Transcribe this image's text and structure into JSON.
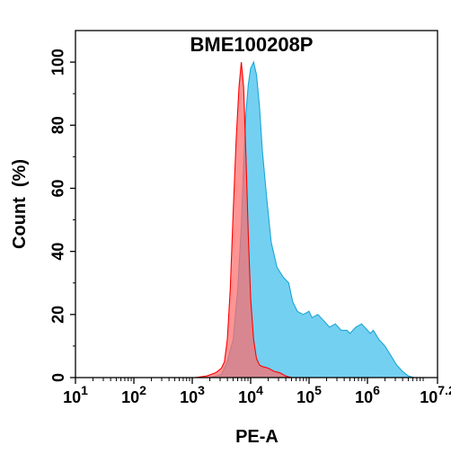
{
  "chart_data": {
    "type": "area",
    "title": "BME100208P",
    "xlabel": "PE-A",
    "ylabel": "Count  (%)",
    "x_scale": "log10",
    "xlim": [
      1,
      7.2
    ],
    "ylim": [
      0,
      110
    ],
    "x_ticks": [
      {
        "base": "10",
        "exp": "1",
        "value": 1
      },
      {
        "base": "10",
        "exp": "2",
        "value": 2
      },
      {
        "base": "10",
        "exp": "3",
        "value": 3
      },
      {
        "base": "10",
        "exp": "4",
        "value": 4
      },
      {
        "base": "10",
        "exp": "5",
        "value": 5
      },
      {
        "base": "10",
        "exp": "6",
        "value": 6
      },
      {
        "base": "10",
        "exp": "7.2",
        "value": 7.2
      }
    ],
    "y_ticks": [
      "0",
      "20",
      "40",
      "60",
      "80",
      "100"
    ],
    "grid": false,
    "legend": "none",
    "series": [
      {
        "color": "#ff0000",
        "fill": "#ff6b6b",
        "points": [
          [
            3.05,
            0
          ],
          [
            3.25,
            0.5
          ],
          [
            3.4,
            1.5
          ],
          [
            3.5,
            3
          ],
          [
            3.55,
            5
          ],
          [
            3.6,
            12
          ],
          [
            3.65,
            28
          ],
          [
            3.7,
            52
          ],
          [
            3.75,
            75
          ],
          [
            3.8,
            92
          ],
          [
            3.84,
            100
          ],
          [
            3.88,
            92
          ],
          [
            3.92,
            70
          ],
          [
            3.96,
            45
          ],
          [
            4.0,
            25
          ],
          [
            4.05,
            12
          ],
          [
            4.1,
            6
          ],
          [
            4.15,
            4
          ],
          [
            4.2,
            3.5
          ],
          [
            4.3,
            3
          ],
          [
            4.4,
            2
          ],
          [
            4.5,
            1.5
          ],
          [
            4.6,
            0.5
          ],
          [
            4.7,
            0
          ]
        ]
      },
      {
        "color": "#1ca6d8",
        "fill": "#5cc8ee",
        "points": [
          [
            3.3,
            0
          ],
          [
            3.5,
            1
          ],
          [
            3.6,
            5
          ],
          [
            3.7,
            12
          ],
          [
            3.78,
            28
          ],
          [
            3.84,
            48
          ],
          [
            3.88,
            68
          ],
          [
            3.92,
            84
          ],
          [
            3.96,
            93
          ],
          [
            4.0,
            98
          ],
          [
            4.05,
            100
          ],
          [
            4.1,
            96
          ],
          [
            4.15,
            86
          ],
          [
            4.2,
            72
          ],
          [
            4.28,
            56
          ],
          [
            4.35,
            43
          ],
          [
            4.45,
            35
          ],
          [
            4.55,
            32
          ],
          [
            4.65,
            30
          ],
          [
            4.72,
            24
          ],
          [
            4.8,
            21
          ],
          [
            4.9,
            20
          ],
          [
            5.0,
            21
          ],
          [
            5.05,
            19
          ],
          [
            5.15,
            20
          ],
          [
            5.25,
            18
          ],
          [
            5.35,
            16
          ],
          [
            5.45,
            17
          ],
          [
            5.55,
            15
          ],
          [
            5.65,
            15
          ],
          [
            5.7,
            14
          ],
          [
            5.8,
            16
          ],
          [
            5.9,
            17
          ],
          [
            6.0,
            15
          ],
          [
            6.05,
            14
          ],
          [
            6.1,
            15
          ],
          [
            6.2,
            12
          ],
          [
            6.3,
            10
          ],
          [
            6.4,
            7
          ],
          [
            6.5,
            4
          ],
          [
            6.6,
            2
          ],
          [
            6.7,
            0.5
          ],
          [
            6.8,
            0
          ]
        ]
      }
    ]
  }
}
